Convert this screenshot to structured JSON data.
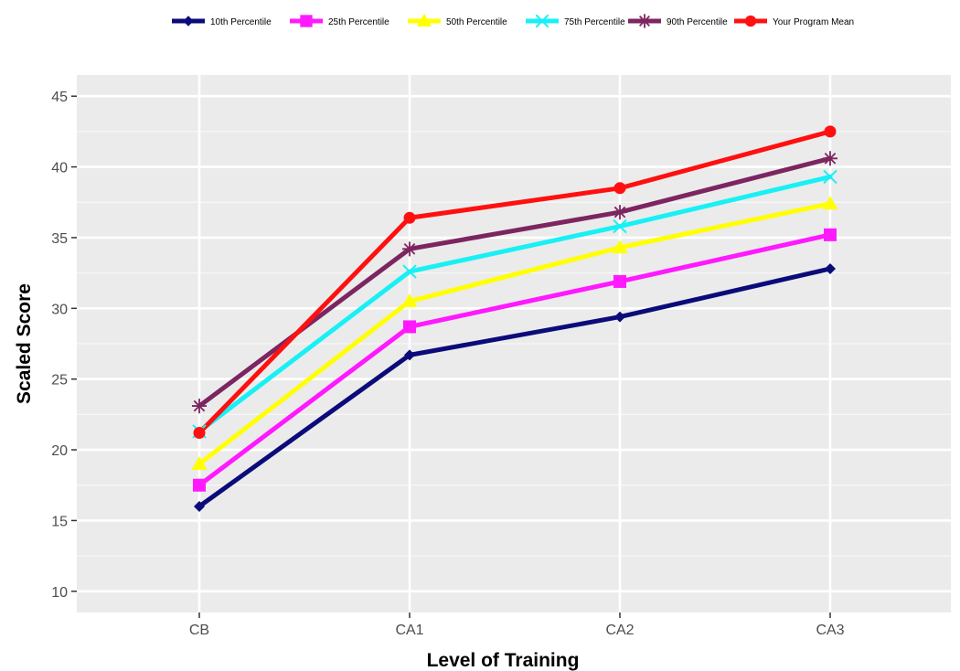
{
  "chart_data": {
    "type": "line",
    "categories": [
      "CB",
      "CA1",
      "CA2",
      "CA3"
    ],
    "series": [
      {
        "name": "10th Percentile",
        "values": [
          16.0,
          26.7,
          29.4,
          32.8
        ],
        "color": "#0b0b7a",
        "marker": "diamond"
      },
      {
        "name": "25th Percentile",
        "values": [
          17.5,
          28.7,
          31.9,
          35.2
        ],
        "color": "#ff19ff",
        "marker": "square"
      },
      {
        "name": "50th Percentile",
        "values": [
          19.0,
          30.5,
          34.3,
          37.4
        ],
        "color": "#ffff00",
        "marker": "triangle"
      },
      {
        "name": "75th Percentile",
        "values": [
          21.3,
          32.6,
          35.8,
          39.3
        ],
        "color": "#19f0f5",
        "marker": "x"
      },
      {
        "name": "90th Percentile",
        "values": [
          23.1,
          34.2,
          36.8,
          40.6
        ],
        "color": "#7d2561",
        "marker": "asterisk"
      },
      {
        "name": "Your Program Mean",
        "values": [
          21.2,
          36.4,
          38.5,
          42.5
        ],
        "color": "#ff1010",
        "marker": "circle"
      }
    ],
    "xlabel": "Level of Training",
    "ylabel": "Scaled Score",
    "ylim": [
      8.5,
      46.5
    ],
    "yticks": [
      10,
      15,
      20,
      25,
      30,
      35,
      40,
      45
    ],
    "legend_position": "top",
    "grid": true,
    "panel_color": "#ebebeb"
  }
}
